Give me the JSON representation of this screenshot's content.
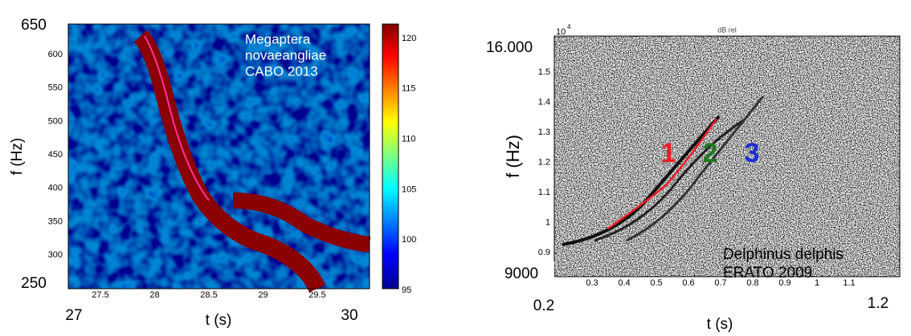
{
  "left": {
    "corner_labels": {
      "top": "650",
      "bottom": "250",
      "start": "27",
      "end": "30"
    },
    "y_ticks": [
      "600",
      "550",
      "500",
      "450",
      "400",
      "350",
      "300"
    ],
    "x_ticks": [
      "27.5",
      "28",
      "28.5",
      "29",
      "29.5"
    ],
    "colorbar_ticks": [
      "120",
      "115",
      "110",
      "105",
      "100",
      "95"
    ],
    "annotation": [
      "Megaptera",
      "novaeangliae",
      "CABO 2013"
    ],
    "y_label": "f (Hz)",
    "x_label": "t (s)"
  },
  "right": {
    "corner_labels": {
      "top": "16.000",
      "bottom": "9000",
      "start": "0.2",
      "end": "1.2"
    },
    "exponent": "10",
    "exponent_power": "4",
    "colorbar_title": "dB rel",
    "y_ticks": [
      "1.5",
      "1.4",
      "1.3",
      "1.2",
      "1.1",
      "1",
      "0.9"
    ],
    "x_ticks": [
      "0.3",
      "0.4",
      "0.5",
      "0.6",
      "0.7",
      "0.8",
      "0.9",
      "1",
      "1.1"
    ],
    "contour_labels": [
      "1",
      "2",
      "3"
    ],
    "annotation": [
      "Delphinus delphis",
      "ERATO 2009"
    ],
    "y_label": "f (Hz)",
    "x_label": "t (s)"
  }
}
